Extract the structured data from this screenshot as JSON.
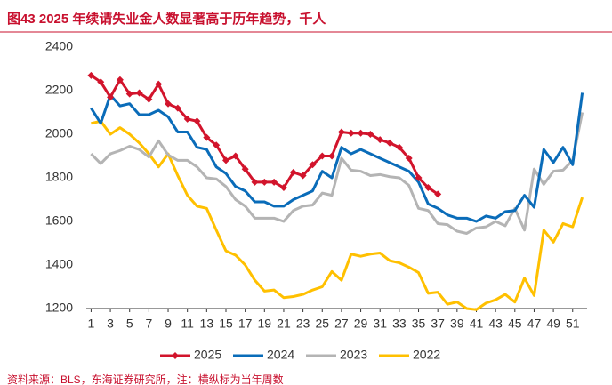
{
  "chart_data": {
    "type": "line",
    "title": "图43  2025 年续请失业金人数显著高于历年趋势，千人",
    "source": "资料来源：BLS，东海证券研究所，注：横纵标为当年周数",
    "x": [
      1,
      2,
      3,
      4,
      5,
      6,
      7,
      8,
      9,
      10,
      11,
      12,
      13,
      14,
      15,
      16,
      17,
      18,
      19,
      20,
      21,
      22,
      23,
      24,
      25,
      26,
      27,
      28,
      29,
      30,
      31,
      32,
      33,
      34,
      35,
      36,
      37,
      38,
      39,
      40,
      41,
      42,
      43,
      44,
      45,
      46,
      47,
      48,
      49,
      50,
      51,
      52
    ],
    "xlim": [
      0.5,
      52.5
    ],
    "xticks": [
      1,
      3,
      5,
      7,
      9,
      11,
      13,
      15,
      17,
      19,
      21,
      23,
      25,
      27,
      29,
      31,
      33,
      35,
      37,
      39,
      41,
      43,
      45,
      47,
      49,
      51
    ],
    "ylim": [
      1200,
      2400
    ],
    "yticks": [
      1200,
      1400,
      1600,
      1800,
      2000,
      2200,
      2400
    ],
    "grid": false,
    "legend": "bottom",
    "series": [
      {
        "name": "2025",
        "color": "#d2142c",
        "marker": "diamond",
        "values": [
          2270,
          2240,
          2170,
          2250,
          2185,
          2190,
          2160,
          2230,
          2140,
          2120,
          2070,
          2060,
          1985,
          1950,
          1880,
          1900,
          1840,
          1780,
          1780,
          1780,
          1755,
          1825,
          1810,
          1860,
          1900,
          1900,
          2010,
          2005,
          2005,
          2000,
          1975,
          1960,
          1940,
          1890,
          1800,
          1755,
          1725,
          null,
          null,
          null,
          null,
          null,
          null,
          null,
          null,
          null,
          null,
          null,
          null,
          null,
          null,
          null
        ]
      },
      {
        "name": "2024",
        "color": "#0a6cb9",
        "values": [
          2120,
          2050,
          2180,
          2130,
          2140,
          2090,
          2090,
          2110,
          2080,
          2010,
          2010,
          1940,
          1930,
          1850,
          1820,
          1760,
          1740,
          1690,
          1690,
          1670,
          1670,
          1700,
          1720,
          1740,
          1830,
          1800,
          1940,
          1910,
          1930,
          1910,
          1890,
          1870,
          1850,
          1830,
          1780,
          1680,
          1660,
          1630,
          1615,
          1615,
          1600,
          1625,
          1615,
          1645,
          1650,
          1720,
          1665,
          1930,
          1870,
          1940,
          1860,
          2190
        ]
      },
      {
        "name": "2023",
        "color": "#b4b4b4",
        "values": [
          1910,
          1865,
          1910,
          1925,
          1945,
          1930,
          1895,
          1970,
          1905,
          1880,
          1880,
          1850,
          1800,
          1795,
          1760,
          1700,
          1670,
          1615,
          1615,
          1615,
          1600,
          1650,
          1670,
          1675,
          1730,
          1720,
          1890,
          1835,
          1830,
          1810,
          1815,
          1805,
          1800,
          1765,
          1660,
          1650,
          1590,
          1585,
          1555,
          1545,
          1570,
          1575,
          1600,
          1580,
          1660,
          1560,
          1840,
          1770,
          1830,
          1835,
          1880,
          2100
        ]
      },
      {
        "name": "2022",
        "color": "#ffc000",
        "values": [
          2050,
          2060,
          2000,
          2030,
          2000,
          1960,
          1910,
          1850,
          1910,
          1810,
          1720,
          1670,
          1660,
          1560,
          1465,
          1445,
          1400,
          1330,
          1280,
          1285,
          1250,
          1255,
          1265,
          1285,
          1300,
          1370,
          1330,
          1450,
          1440,
          1450,
          1455,
          1420,
          1410,
          1390,
          1365,
          1270,
          1275,
          1220,
          1230,
          1200,
          1195,
          1225,
          1240,
          1265,
          1230,
          1340,
          1260,
          1560,
          1505,
          1590,
          1575,
          1710
        ]
      }
    ]
  }
}
